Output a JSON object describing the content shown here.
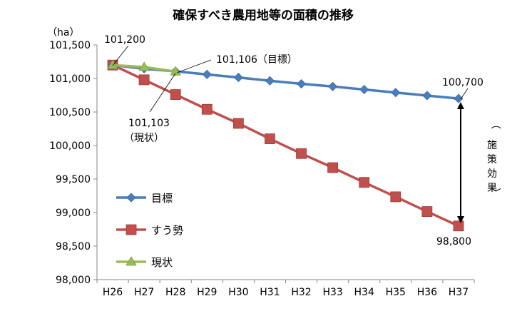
{
  "chart_data": {
    "type": "line",
    "title": "確保すべき農用地等の面積の推移",
    "y_unit": "（ha）",
    "categories": [
      "H26",
      "H27",
      "H28",
      "H29",
      "H30",
      "H31",
      "H32",
      "H33",
      "H34",
      "H35",
      "H36",
      "H37"
    ],
    "ylim": [
      98000,
      101500
    ],
    "yticks": [
      98000,
      98500,
      99000,
      99500,
      100000,
      100500,
      101000,
      101500
    ],
    "ytick_labels": [
      "98,000",
      "98,500",
      "99,000",
      "99,500",
      "100,000",
      "100,500",
      "101,000",
      "101,500"
    ],
    "grid": false,
    "legend_position": "bottom-left inside",
    "series": [
      {
        "name": "目標",
        "color": "#4a7ebb",
        "marker": "diamond",
        "values": [
          101200,
          101145,
          101106,
          101060,
          101015,
          100965,
          100920,
          100880,
          100835,
          100790,
          100745,
          100700
        ]
      },
      {
        "name": "すう勢",
        "color": "#c0504d",
        "marker": "square",
        "values": [
          101200,
          100980,
          100760,
          100540,
          100330,
          100100,
          99880,
          99670,
          99450,
          99235,
          99015,
          98800
        ]
      },
      {
        "name": "現状",
        "color": "#9bbb59",
        "marker": "triangle",
        "values": [
          101200,
          101170,
          101103,
          null,
          null,
          null,
          null,
          null,
          null,
          null,
          null,
          null
        ]
      }
    ],
    "annotations": {
      "start": "101,200",
      "target_h28": "101,106（目標）",
      "current_h28_value": "101,103",
      "current_h28_label": "（現状）",
      "target_end": "100,700",
      "trend_end": "98,800",
      "effect_label": "（施策効果）"
    }
  }
}
